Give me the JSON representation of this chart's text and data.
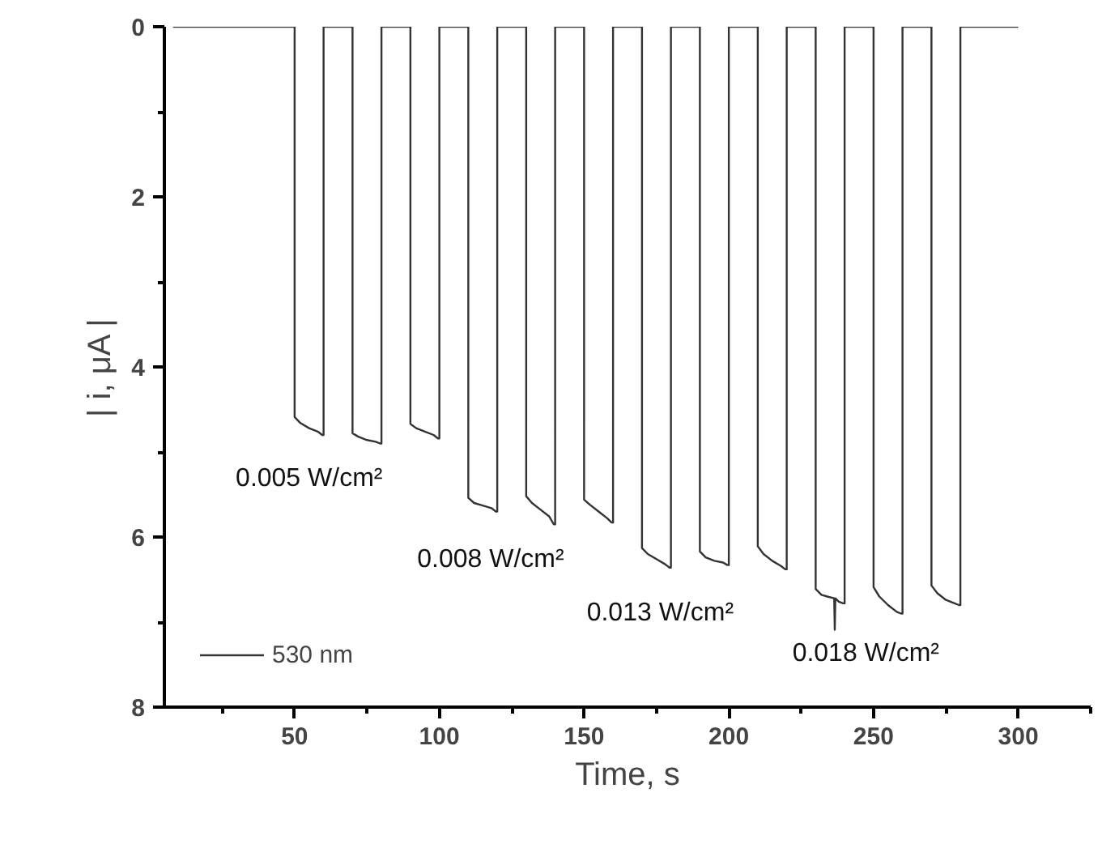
{
  "chart_data": {
    "type": "line",
    "xlabel": "Time, s",
    "ylabel": "| i, μA |",
    "x": [
      8,
      50,
      50,
      52,
      55,
      58,
      59.5,
      60,
      60,
      70,
      70,
      72,
      75,
      78,
      79.5,
      80,
      80,
      90,
      90,
      92,
      95,
      98,
      99.5,
      100,
      100,
      110,
      110,
      112,
      115,
      118,
      119.5,
      120,
      120,
      130,
      130,
      132,
      135,
      138,
      139.5,
      140,
      140,
      150,
      150,
      152,
      155,
      158,
      159.5,
      160,
      160,
      170,
      170,
      172,
      175,
      178,
      179.5,
      180,
      180,
      190,
      190,
      192,
      195,
      198,
      199.5,
      200,
      200,
      210,
      210,
      212,
      215,
      218,
      219.5,
      220,
      220,
      230,
      230,
      232,
      234,
      236.4,
      236.6,
      236.8,
      238,
      239.5,
      240,
      240,
      250,
      250,
      252,
      255,
      258,
      259.5,
      260,
      260,
      270,
      270,
      272,
      275,
      278,
      279.5,
      280,
      280,
      300
    ],
    "series": [
      {
        "name": "530 nm",
        "color": "#333333",
        "values": [
          0,
          0,
          4.59,
          4.66,
          4.72,
          4.76,
          4.8,
          4.8,
          0,
          0,
          4.78,
          4.82,
          4.86,
          4.88,
          4.9,
          4.9,
          0,
          0,
          4.67,
          4.72,
          4.76,
          4.8,
          4.84,
          4.84,
          0,
          0,
          5.54,
          5.6,
          5.63,
          5.66,
          5.7,
          5.7,
          0,
          0,
          5.52,
          5.6,
          5.68,
          5.76,
          5.85,
          5.85,
          0,
          0,
          5.56,
          5.62,
          5.7,
          5.78,
          5.83,
          5.83,
          0,
          0,
          6.13,
          6.2,
          6.26,
          6.32,
          6.36,
          6.36,
          0,
          0,
          6.17,
          6.24,
          6.28,
          6.3,
          6.33,
          6.33,
          0,
          0,
          6.11,
          6.2,
          6.28,
          6.34,
          6.38,
          6.38,
          0,
          0,
          6.61,
          6.68,
          6.7,
          6.72,
          7.09,
          6.72,
          6.76,
          6.78,
          6.78,
          0,
          0,
          6.59,
          6.7,
          6.8,
          6.88,
          6.9,
          6.9,
          0,
          0,
          6.57,
          6.66,
          6.74,
          6.78,
          6.8,
          6.8,
          0,
          0
        ]
      }
    ],
    "xlim": [
      5,
      325
    ],
    "ylim": [
      8,
      0
    ],
    "xticks": [
      {
        "value": 25,
        "label": null
      },
      50,
      {
        "value": 75,
        "label": null
      },
      100,
      {
        "value": 125,
        "label": null
      },
      150,
      {
        "value": 175,
        "label": null
      },
      200,
      {
        "value": 225,
        "label": null
      },
      250,
      {
        "value": 275,
        "label": null
      },
      300,
      {
        "value": 325,
        "label": null
      }
    ],
    "yticks": [
      0,
      {
        "value": 1,
        "label": null
      },
      2,
      {
        "value": 3,
        "label": null
      },
      4,
      {
        "value": 5,
        "label": null
      },
      6,
      {
        "value": 7,
        "label": null
      },
      8
    ],
    "annotations": [
      "0.005 W/cm²",
      "0.008 W/cm²",
      "0.013 W/cm²",
      "0.018 W/cm²"
    ],
    "legend": "bottom left",
    "grid": false,
    "marker": "none",
    "line_style": "solid"
  }
}
